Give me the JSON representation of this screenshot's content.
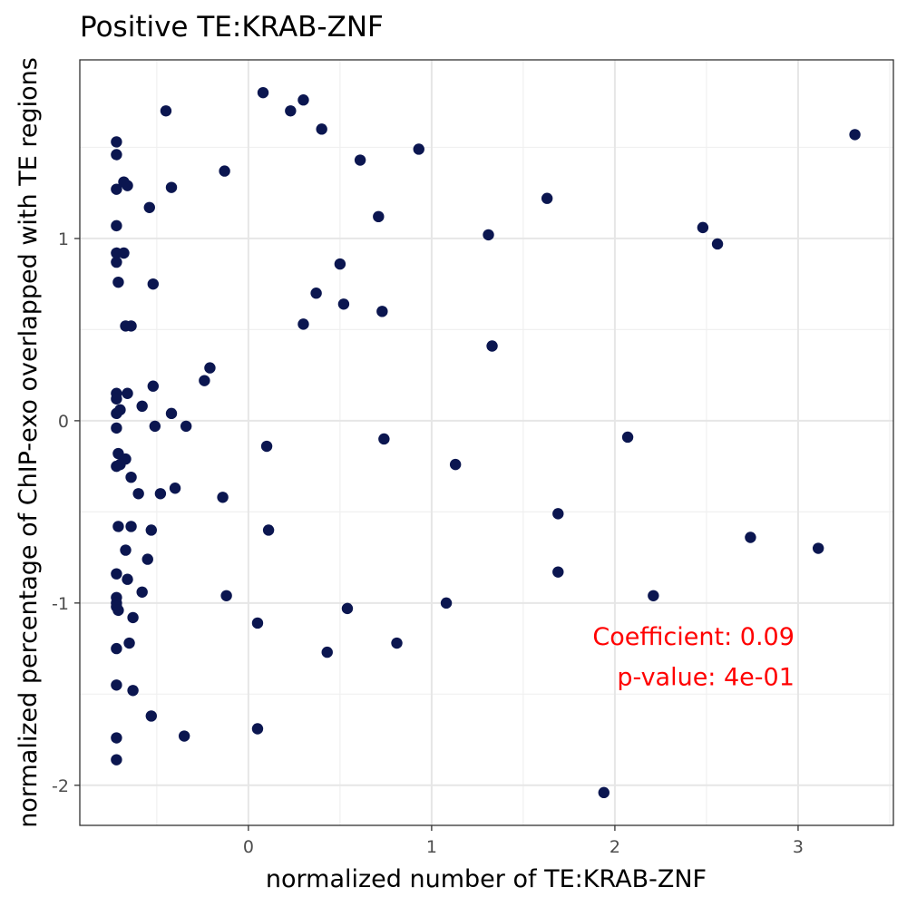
{
  "chart_data": {
    "type": "scatter",
    "title": "Positive TE:KRAB-ZNF",
    "xlabel": "normalized number of TE:KRAB-ZNF",
    "ylabel": "normalized percentage of ChIP-exo overlapped with TE regions",
    "xlim": [
      -0.92,
      3.52
    ],
    "ylim": [
      -2.22,
      1.98
    ],
    "x_ticks": [
      0,
      1,
      2,
      3
    ],
    "x_tick_labels": [
      "0",
      "1",
      "2",
      "3"
    ],
    "y_ticks": [
      -2,
      -1,
      0,
      1
    ],
    "y_tick_labels": [
      "-2",
      "-1",
      "0",
      "1"
    ],
    "grid": true,
    "point_color": "#0b1650",
    "annotation": {
      "lines": [
        "Coefficient: 0.09",
        "p-value: 4e-01"
      ],
      "color": "#ff0000",
      "anchor_x": 2.98,
      "anchor_y": [
        -1.23,
        -1.45
      ]
    },
    "points": [
      [
        -0.72,
        1.53
      ],
      [
        -0.72,
        1.46
      ],
      [
        -0.72,
        1.27
      ],
      [
        -0.68,
        1.31
      ],
      [
        -0.66,
        1.29
      ],
      [
        -0.72,
        1.07
      ],
      [
        -0.72,
        0.92
      ],
      [
        -0.68,
        0.92
      ],
      [
        -0.72,
        0.87
      ],
      [
        -0.71,
        0.76
      ],
      [
        -0.67,
        0.52
      ],
      [
        -0.64,
        0.52
      ],
      [
        -0.52,
        0.75
      ],
      [
        -0.54,
        1.17
      ],
      [
        -0.42,
        1.28
      ],
      [
        -0.45,
        1.7
      ],
      [
        -0.13,
        1.37
      ],
      [
        0.08,
        1.8
      ],
      [
        0.23,
        1.7
      ],
      [
        0.3,
        1.76
      ],
      [
        0.4,
        1.6
      ],
      [
        0.61,
        1.43
      ],
      [
        0.93,
        1.49
      ],
      [
        0.71,
        1.12
      ],
      [
        0.5,
        0.86
      ],
      [
        0.37,
        0.7
      ],
      [
        0.52,
        0.64
      ],
      [
        0.73,
        0.6
      ],
      [
        0.3,
        0.53
      ],
      [
        1.31,
        1.02
      ],
      [
        1.33,
        0.41
      ],
      [
        1.63,
        1.22
      ],
      [
        2.48,
        1.06
      ],
      [
        2.56,
        0.97
      ],
      [
        3.31,
        1.57
      ],
      [
        -0.72,
        0.15
      ],
      [
        -0.72,
        0.12
      ],
      [
        -0.66,
        0.15
      ],
      [
        -0.52,
        0.19
      ],
      [
        -0.72,
        0.04
      ],
      [
        -0.7,
        0.06
      ],
      [
        -0.58,
        0.08
      ],
      [
        -0.42,
        0.04
      ],
      [
        -0.51,
        -0.03
      ],
      [
        -0.34,
        -0.03
      ],
      [
        -0.24,
        0.22
      ],
      [
        -0.21,
        0.29
      ],
      [
        -0.72,
        -0.04
      ],
      [
        -0.71,
        -0.18
      ],
      [
        -0.67,
        -0.21
      ],
      [
        -0.72,
        -0.25
      ],
      [
        -0.7,
        -0.24
      ],
      [
        -0.64,
        -0.31
      ],
      [
        -0.6,
        -0.4
      ],
      [
        -0.48,
        -0.4
      ],
      [
        -0.4,
        -0.37
      ],
      [
        -0.14,
        -0.42
      ],
      [
        0.1,
        -0.14
      ],
      [
        0.74,
        -0.1
      ],
      [
        1.13,
        -0.24
      ],
      [
        2.07,
        -0.09
      ],
      [
        1.69,
        -0.51
      ],
      [
        -0.71,
        -0.58
      ],
      [
        -0.64,
        -0.58
      ],
      [
        -0.53,
        -0.6
      ],
      [
        -0.67,
        -0.71
      ],
      [
        -0.55,
        -0.76
      ],
      [
        0.11,
        -0.6
      ],
      [
        -0.72,
        -0.84
      ],
      [
        -0.66,
        -0.87
      ],
      [
        -0.58,
        -0.94
      ],
      [
        -0.72,
        -0.97
      ],
      [
        -0.72,
        -1.0
      ],
      [
        -0.72,
        -1.02
      ],
      [
        -0.71,
        -1.04
      ],
      [
        -0.63,
        -1.08
      ],
      [
        -0.12,
        -0.96
      ],
      [
        0.05,
        -1.11
      ],
      [
        1.08,
        -1.0
      ],
      [
        0.54,
        -1.03
      ],
      [
        1.69,
        -0.83
      ],
      [
        2.21,
        -0.96
      ],
      [
        2.74,
        -0.64
      ],
      [
        3.11,
        -0.7
      ],
      [
        -0.72,
        -1.25
      ],
      [
        -0.65,
        -1.22
      ],
      [
        0.43,
        -1.27
      ],
      [
        0.81,
        -1.22
      ],
      [
        -0.72,
        -1.45
      ],
      [
        -0.63,
        -1.48
      ],
      [
        -0.53,
        -1.62
      ],
      [
        -0.35,
        -1.73
      ],
      [
        0.05,
        -1.69
      ],
      [
        -0.72,
        -1.74
      ],
      [
        -0.72,
        -1.86
      ],
      [
        1.94,
        -2.04
      ]
    ]
  }
}
